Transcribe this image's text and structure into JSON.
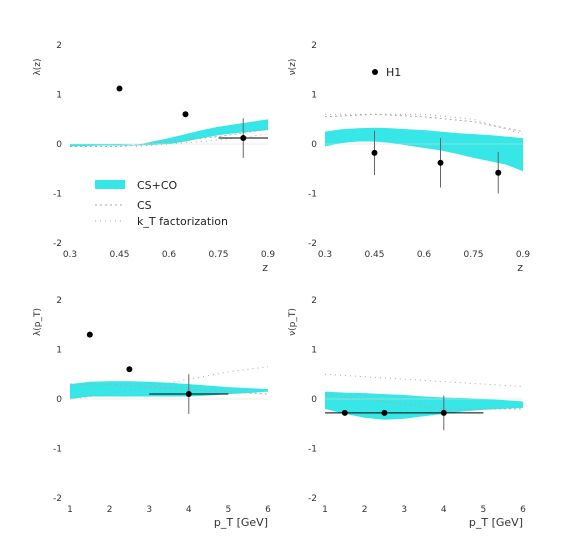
{
  "chart_data": [
    {
      "id": "p1",
      "type": "scatter",
      "ylabel": "λ(z)",
      "xlabel": "z",
      "xlim": [
        0.3,
        0.9
      ],
      "ylim": [
        -2,
        2
      ],
      "xticks": [
        "0.3",
        "0.45",
        "0.6",
        "0.75",
        "0.9"
      ],
      "yticks": [
        "-2",
        "-1",
        "0",
        "1",
        "2"
      ],
      "points": [
        {
          "x": 0.45,
          "y": 1.12,
          "xerr": 0,
          "yerr": 0
        },
        {
          "x": 0.65,
          "y": 0.6,
          "xerr": 0,
          "yerr": 0
        },
        {
          "x": 0.825,
          "y": 0.12,
          "xerr": 0.075,
          "yerr": 0.4
        }
      ],
      "band": {
        "x": [
          0.3,
          0.35,
          0.4,
          0.45,
          0.5,
          0.55,
          0.6,
          0.65,
          0.7,
          0.75,
          0.8,
          0.85,
          0.9
        ],
        "lo": [
          -0.05,
          -0.04,
          -0.03,
          -0.03,
          -0.03,
          -0.02,
          0.0,
          0.05,
          0.12,
          0.18,
          0.22,
          0.25,
          0.28
        ],
        "hi": [
          0.0,
          0.0,
          0.0,
          0.0,
          -0.02,
          0.05,
          0.12,
          0.2,
          0.28,
          0.35,
          0.4,
          0.45,
          0.5
        ]
      },
      "cs_line": {
        "x": [
          0.3,
          0.45,
          0.6,
          0.75,
          0.9
        ],
        "y": [
          -0.05,
          -0.05,
          0.05,
          0.15,
          0.3
        ]
      },
      "kt_line": {
        "x": [
          0.5,
          0.6,
          0.7,
          0.8,
          0.9
        ],
        "y": [
          -0.05,
          0.0,
          0.05,
          0.12,
          0.2
        ]
      }
    },
    {
      "id": "p2",
      "type": "scatter",
      "ylabel": "ν(z)",
      "xlabel": "z",
      "xlim": [
        0.3,
        0.9
      ],
      "ylim": [
        -2,
        2
      ],
      "xticks": [
        "0.3",
        "0.45",
        "0.6",
        "0.75",
        "0.9"
      ],
      "yticks": [
        "-2",
        "-1",
        "0",
        "1",
        "2"
      ],
      "points": [
        {
          "x": 0.45,
          "y": -0.18,
          "xerr": 0,
          "yerr": 0.45
        },
        {
          "x": 0.65,
          "y": -0.38,
          "xerr": 0,
          "yerr": 0.5
        },
        {
          "x": 0.825,
          "y": -0.58,
          "xerr": 0,
          "yerr": 0.42
        }
      ],
      "band": {
        "x": [
          0.3,
          0.35,
          0.4,
          0.45,
          0.5,
          0.55,
          0.6,
          0.65,
          0.7,
          0.75,
          0.8,
          0.85,
          0.9
        ],
        "lo": [
          -0.05,
          0.02,
          0.05,
          0.05,
          0.02,
          -0.03,
          -0.08,
          -0.13,
          -0.2,
          -0.28,
          -0.35,
          -0.42,
          -0.55
        ],
        "hi": [
          0.25,
          0.3,
          0.32,
          0.33,
          0.32,
          0.3,
          0.28,
          0.25,
          0.22,
          0.2,
          0.18,
          0.15,
          0.12
        ]
      },
      "kt_line": {
        "x": [
          0.3,
          0.45,
          0.6,
          0.75,
          0.9
        ],
        "y": [
          0.6,
          0.6,
          0.6,
          0.5,
          0.2
        ]
      },
      "cs_line": {
        "x": [
          0.3,
          0.45,
          0.6,
          0.75,
          0.9
        ],
        "y": [
          0.55,
          0.6,
          0.55,
          0.45,
          0.25
        ]
      }
    },
    {
      "id": "p3",
      "type": "scatter",
      "ylabel": "λ(p_T)",
      "xlabel": "p_T [GeV]",
      "xlim": [
        1,
        6
      ],
      "ylim": [
        -2,
        2
      ],
      "xticks": [
        "1",
        "2",
        "3",
        "4",
        "5",
        "6"
      ],
      "yticks": [
        "-2",
        "-1",
        "0",
        "1",
        "2"
      ],
      "points": [
        {
          "x": 1.5,
          "y": 1.3,
          "xerr": 0,
          "yerr": 0
        },
        {
          "x": 2.5,
          "y": 0.6,
          "xerr": 0,
          "yerr": 0
        },
        {
          "x": 4.0,
          "y": 0.1,
          "xerr": 1.0,
          "yerr": 0.4
        }
      ],
      "band": {
        "x": [
          1,
          1.5,
          2,
          2.5,
          3,
          3.5,
          4,
          4.5,
          5,
          5.5,
          6
        ],
        "lo": [
          0.0,
          0.05,
          0.05,
          0.05,
          0.05,
          0.05,
          0.05,
          0.07,
          0.1,
          0.12,
          0.15
        ],
        "hi": [
          0.3,
          0.35,
          0.36,
          0.36,
          0.35,
          0.33,
          0.3,
          0.27,
          0.24,
          0.22,
          0.2
        ]
      },
      "cs_line": {
        "x": [
          1,
          2,
          3,
          4,
          5,
          6
        ],
        "y": [
          0.3,
          0.3,
          0.25,
          0.2,
          0.15,
          0.1
        ]
      },
      "kt_line": {
        "x": [
          1,
          2,
          3,
          4,
          5,
          6
        ],
        "y": [
          0.0,
          0.1,
          0.25,
          0.4,
          0.55,
          0.65
        ]
      }
    },
    {
      "id": "p4",
      "type": "scatter",
      "ylabel": "ν(p_T)",
      "xlabel": "p_T [GeV]",
      "xlim": [
        1,
        6
      ],
      "ylim": [
        -2,
        2
      ],
      "xticks": [
        "1",
        "2",
        "3",
        "4",
        "5",
        "6"
      ],
      "yticks": [
        "-2",
        "-1",
        "0",
        "1",
        "2"
      ],
      "points": [
        {
          "x": 1.5,
          "y": -0.28,
          "xerr": 0.5,
          "yerr": 0
        },
        {
          "x": 2.5,
          "y": -0.28,
          "xerr": 0.5,
          "yerr": 0
        },
        {
          "x": 4.0,
          "y": -0.28,
          "xerr": 1.0,
          "yerr": 0.35
        }
      ],
      "band": {
        "x": [
          1,
          1.5,
          2,
          2.5,
          3,
          3.5,
          4,
          4.5,
          5,
          5.5,
          6
        ],
        "lo": [
          -0.2,
          -0.3,
          -0.38,
          -0.42,
          -0.4,
          -0.35,
          -0.3,
          -0.25,
          -0.22,
          -0.2,
          -0.18
        ],
        "hi": [
          0.15,
          0.13,
          0.12,
          0.1,
          0.08,
          0.05,
          0.03,
          0.02,
          0.0,
          -0.02,
          -0.05
        ]
      },
      "kt_line": {
        "x": [
          1,
          2,
          3,
          4,
          5,
          6
        ],
        "y": [
          0.5,
          0.45,
          0.4,
          0.35,
          0.3,
          0.25
        ]
      },
      "cs_line": {
        "x": [
          1,
          2,
          3,
          4,
          5,
          6
        ],
        "y": [
          0.1,
          0.0,
          -0.1,
          -0.2,
          -0.2,
          -0.2
        ]
      }
    }
  ],
  "legend": {
    "items": [
      "CS+CO",
      "CS",
      "k_T factorization"
    ],
    "data_label": "H1"
  },
  "colors": {
    "band": "#37e6e6",
    "point": "#000000",
    "line": "#aaaaaa"
  }
}
